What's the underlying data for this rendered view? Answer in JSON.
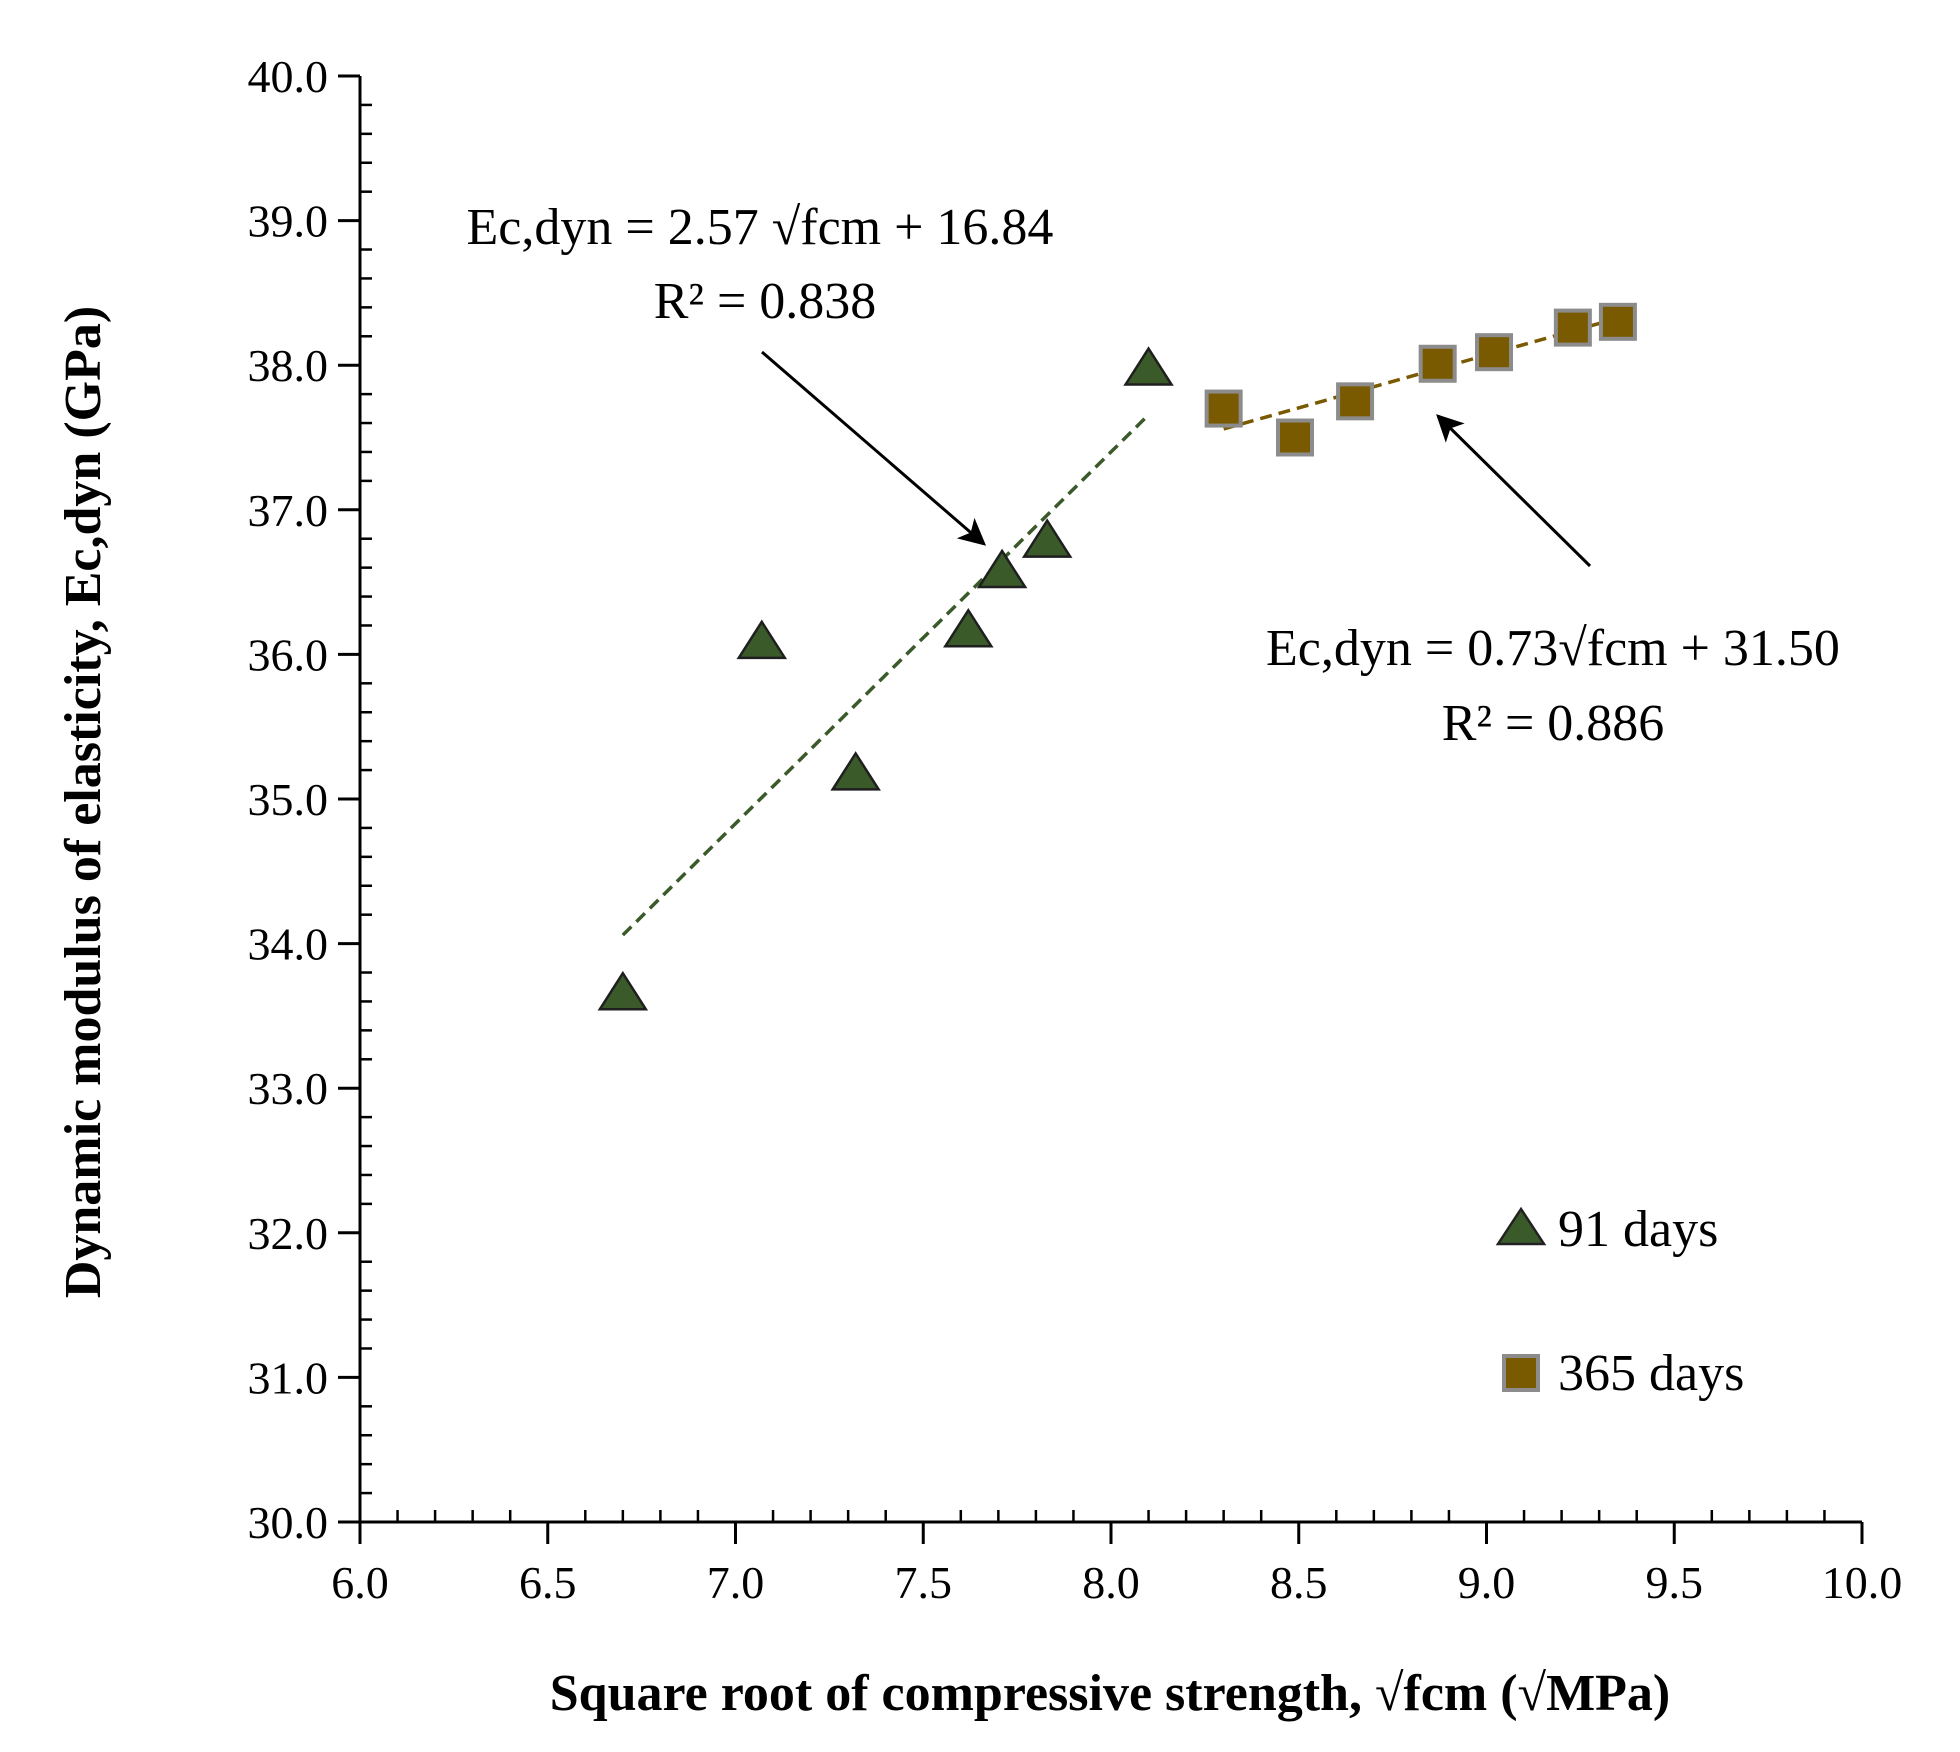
{
  "chart_data": {
    "type": "scatter",
    "title": "",
    "xlabel": "Square root of compressive strength, √fcm  (√MPa)",
    "ylabel": "Dynamic modulus of elasticity,  Ec,dyn (GPa)",
    "xlim": [
      6.0,
      10.0
    ],
    "ylim": [
      30.0,
      40.0
    ],
    "x_ticks": [
      "6.0",
      "6.5",
      "7.0",
      "7.5",
      "8.0",
      "8.5",
      "9.0",
      "9.5",
      "10.0"
    ],
    "y_ticks": [
      "30.0",
      "31.0",
      "32.0",
      "33.0",
      "34.0",
      "35.0",
      "36.0",
      "37.0",
      "38.0",
      "39.0",
      "40.0"
    ],
    "grid": false,
    "legend_position": "lower-right",
    "series": [
      {
        "name": "91 days",
        "marker": "triangle",
        "color": "#3b5a2a",
        "trendline_color": "#3b5a2a",
        "points": [
          {
            "x": 6.7,
            "y": 33.65
          },
          {
            "x": 7.07,
            "y": 36.08
          },
          {
            "x": 7.32,
            "y": 35.17
          },
          {
            "x": 7.62,
            "y": 36.16
          },
          {
            "x": 7.71,
            "y": 36.57
          },
          {
            "x": 7.83,
            "y": 36.78
          },
          {
            "x": 8.1,
            "y": 37.97
          }
        ],
        "trendline": {
          "slope": 2.57,
          "intercept": 16.84,
          "x_range": [
            6.7,
            8.1
          ]
        },
        "equation": "Ec,dyn = 2.57 √fcm + 16.84",
        "r2": "R² = 0.838"
      },
      {
        "name": "365 days",
        "marker": "square",
        "color": "#7a5a00",
        "trendline_color": "#7a5a00",
        "points": [
          {
            "x": 8.3,
            "y": 37.7
          },
          {
            "x": 8.49,
            "y": 37.5
          },
          {
            "x": 8.65,
            "y": 37.75
          },
          {
            "x": 8.87,
            "y": 38.01
          },
          {
            "x": 9.02,
            "y": 38.09
          },
          {
            "x": 9.23,
            "y": 38.26
          },
          {
            "x": 9.35,
            "y": 38.3
          }
        ],
        "trendline": {
          "slope": 0.73,
          "intercept": 31.5,
          "x_range": [
            8.3,
            9.35
          ]
        },
        "equation": "Ec,dyn = 0.73√fcm + 31.50",
        "r2": "R² = 0.886"
      }
    ]
  }
}
